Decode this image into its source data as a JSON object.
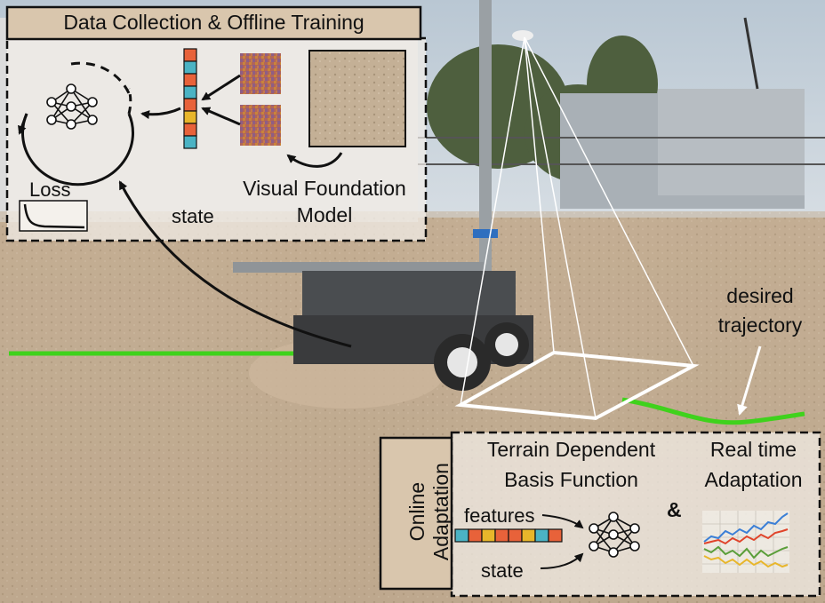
{
  "data_collection": {
    "title": "Data Collection & Offline Training",
    "loss_label": "Loss",
    "state_label": "state",
    "vfm_label_line1": "Visual Foundation",
    "vfm_label_line2": "Model"
  },
  "desired_trajectory": {
    "line1": "desired",
    "line2": "trajectory"
  },
  "online": {
    "side_label_line1": "Online",
    "side_label_line2": "Adaptation",
    "basis_line1": "Terrain Dependent",
    "basis_line2": "Basis Function",
    "realtime_line1": "Real time",
    "realtime_line2": "Adaptation",
    "ampersand": "&",
    "features_label": "features",
    "state_label": "state"
  },
  "colors": {
    "trajectory": "#3fd21c",
    "sand": "#c9b49a",
    "sky": "#c6d2dc",
    "title_bar": "#d9c6ad",
    "series_blue": "#3b7fd6",
    "series_red": "#e0432a",
    "series_green": "#5a9e3a",
    "series_yellow": "#e8b62b"
  },
  "icons": [
    "neural-network-icon",
    "loss-curve-icon",
    "feature-vector-icon",
    "feature-map-icon",
    "terrain-image-icon",
    "mini-line-chart-icon"
  ]
}
